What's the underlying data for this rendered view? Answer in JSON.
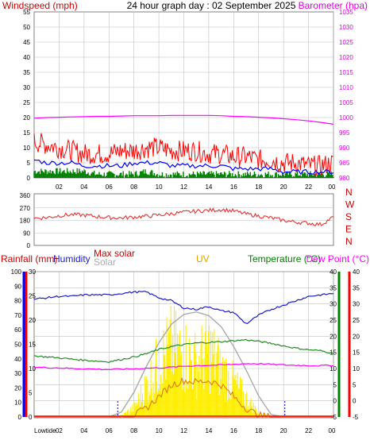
{
  "header": {
    "title": "24 hour graph day : 02 September 2025",
    "left_label": "Windspeed (mph)",
    "right_label": "Barometer (hpa)"
  },
  "x_ticks": [
    "02",
    "04",
    "06",
    "08",
    "10",
    "12",
    "14",
    "16",
    "18",
    "20",
    "22",
    "00"
  ],
  "bottom_left_label": "Lowtide",
  "colors": {
    "wind_gust": "#ff0000",
    "wind_avg": "#0000ff",
    "wind_low": "#008000",
    "barometer": "#ff00ff",
    "direction": "#e83030",
    "humidity": "#1a1acc",
    "temperature": "#228b22",
    "dew_point": "#ff00ff",
    "max_solar": "#aaaaaa",
    "solar": "#ffee00",
    "uv": "#e07000",
    "rain_axis": "#0000ff",
    "temp_axis": "#008000",
    "dew_axis": "#ff0000",
    "grid": "#c0c0c0"
  },
  "chart_data": [
    {
      "type": "line",
      "title": "24 hour graph day : 02 September 2025",
      "ylabel": "Windspeed (mph)",
      "y2label": "Barometer (hpa)",
      "ylim": [
        0,
        55
      ],
      "y2lim": [
        980,
        1035
      ],
      "yticks": [
        0,
        5,
        10,
        15,
        20,
        25,
        30,
        35,
        40,
        45,
        50,
        55
      ],
      "y2ticks": [
        980,
        985,
        990,
        995,
        1000,
        1005,
        1010,
        1015,
        1020,
        1025,
        1030,
        1035
      ],
      "x": [
        0,
        1,
        2,
        3,
        4,
        5,
        6,
        7,
        8,
        9,
        10,
        11,
        12,
        13,
        14,
        15,
        16,
        17,
        18,
        19,
        20,
        21,
        22,
        23,
        24
      ],
      "series": [
        {
          "name": "gust",
          "values": [
            12,
            11,
            10,
            9,
            8,
            8,
            8,
            9,
            9,
            10,
            10,
            9,
            9,
            9,
            8,
            8,
            7,
            7,
            6,
            6,
            5,
            5,
            4,
            4,
            5
          ]
        },
        {
          "name": "average",
          "values": [
            6,
            5,
            5,
            5,
            4,
            4,
            4,
            4,
            5,
            5,
            5,
            4,
            4,
            4,
            4,
            4,
            3,
            3,
            3,
            3,
            2,
            2,
            2,
            2,
            2
          ]
        },
        {
          "name": "low",
          "values": [
            2,
            2,
            2,
            2,
            2,
            1,
            1,
            1,
            1,
            2,
            1,
            1,
            1,
            1,
            1,
            1,
            1,
            1,
            1,
            1,
            1,
            1,
            1,
            1,
            1
          ]
        },
        {
          "name": "barometer",
          "values": [
            999.8,
            1000.0,
            1000.1,
            1000.2,
            1000.3,
            1000.4,
            1000.4,
            1000.5,
            1000.6,
            1000.6,
            1000.6,
            1000.7,
            1000.7,
            1000.7,
            1000.7,
            1000.6,
            1000.4,
            1000.3,
            1000.1,
            999.9,
            999.6,
            999.3,
            998.9,
            998.4,
            997.8
          ]
        }
      ]
    },
    {
      "type": "line",
      "title": "",
      "direction_labels": [
        "N",
        "W",
        "S",
        "E",
        "N"
      ],
      "ylim": [
        0,
        360
      ],
      "yticks": [
        0,
        90,
        180,
        270,
        360
      ],
      "x": [
        0,
        1,
        2,
        3,
        4,
        5,
        6,
        7,
        8,
        9,
        10,
        11,
        12,
        13,
        14,
        15,
        16,
        17,
        18,
        19,
        20,
        21,
        22,
        23,
        24
      ],
      "series": [
        {
          "name": "direction",
          "values": [
            196,
            200,
            214,
            222,
            218,
            208,
            200,
            198,
            204,
            210,
            218,
            228,
            238,
            246,
            252,
            258,
            248,
            226,
            212,
            198,
            180,
            168,
            160,
            150,
            205
          ]
        }
      ]
    },
    {
      "type": "line",
      "title": "",
      "labels": {
        "rainfall": "Rainfall (mm)",
        "humidity": "Humidity",
        "max_solar": "Max solar",
        "solar": "Solar",
        "uv": "UV",
        "temperature": "Temperature (°C)",
        "dew_point": "Dew Point (°C)"
      },
      "rain_axis": {
        "ylim": [
          0,
          30
        ],
        "ticks": [
          0,
          5,
          10,
          15,
          20,
          25,
          30
        ]
      },
      "humidity_axis": {
        "ylim": [
          0,
          100
        ],
        "ticks": [
          0,
          10,
          20,
          30,
          40,
          50,
          60,
          70,
          80,
          90,
          100
        ]
      },
      "temp_axis": {
        "ylim": [
          -5,
          40
        ],
        "ticks": [
          -5,
          0,
          5,
          10,
          15,
          20,
          25,
          30,
          35,
          40
        ]
      },
      "dew_axis": {
        "ylim": [
          -5,
          40
        ],
        "ticks": [
          -5,
          0,
          5,
          10,
          15,
          20,
          25,
          30,
          35,
          40
        ]
      },
      "x": [
        0,
        1,
        2,
        3,
        4,
        5,
        6,
        7,
        8,
        9,
        10,
        11,
        12,
        13,
        14,
        15,
        16,
        17,
        18,
        19,
        20,
        21,
        22,
        23,
        24
      ],
      "series": [
        {
          "name": "humidity",
          "values": [
            81,
            82,
            83,
            83,
            84,
            84,
            84,
            85,
            86,
            86,
            82,
            80,
            75,
            74,
            76,
            73,
            72,
            64,
            70,
            74,
            77,
            80,
            83,
            84,
            85
          ]
        },
        {
          "name": "temperature",
          "values": [
            13.9,
            13.6,
            13.3,
            12.9,
            12.6,
            12.3,
            12.1,
            12.8,
            13.6,
            14.6,
            15.9,
            16.8,
            17.4,
            17.9,
            18.1,
            18.3,
            18.6,
            18.9,
            18.4,
            17.8,
            17.0,
            16.3,
            15.8,
            15.5,
            14.7
          ]
        },
        {
          "name": "dew_point",
          "values": [
            10.4,
            10.3,
            10.2,
            10.0,
            9.9,
            9.8,
            9.7,
            9.8,
            9.9,
            10.1,
            10.2,
            10.4,
            10.7,
            10.9,
            11.0,
            11.1,
            11.3,
            11.5,
            11.5,
            11.3,
            11.1,
            11.0,
            10.9,
            10.9,
            11.0
          ]
        },
        {
          "name": "max_solar",
          "values": [
            0,
            0,
            0,
            0,
            0,
            0,
            0,
            40,
            200,
            410,
            600,
            750,
            830,
            850,
            820,
            730,
            570,
            380,
            170,
            20,
            0,
            0,
            0,
            0,
            0
          ]
        },
        {
          "name": "solar",
          "values": [
            0,
            0,
            0,
            0,
            0,
            0,
            0,
            12,
            80,
            280,
            480,
            620,
            560,
            470,
            600,
            420,
            300,
            160,
            40,
            5,
            0,
            0,
            0,
            0,
            0
          ]
        },
        {
          "name": "uv",
          "values": [
            0,
            0,
            0,
            0,
            0,
            0,
            0,
            0,
            0.1,
            0.6,
            1.4,
            2.2,
            2.5,
            2.4,
            2.5,
            2.2,
            1.4,
            0.6,
            0.1,
            0,
            0,
            0,
            0,
            0,
            0
          ]
        }
      ],
      "rainfall_total": 0
    }
  ]
}
